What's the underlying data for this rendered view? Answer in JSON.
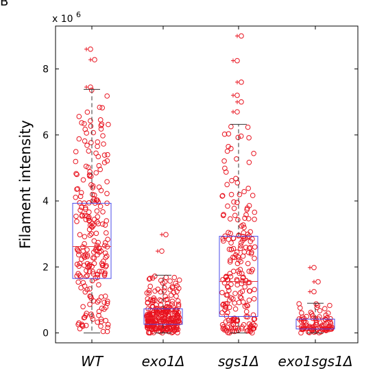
{
  "panel_letter": "B",
  "chart_data": {
    "type": "box",
    "ylabel": "Filament intensity",
    "xlabel": "",
    "y_exponent_label": "x 10",
    "y_exponent_power": "6",
    "ylim": [
      -0.3,
      9.3
    ],
    "yticks": [
      0,
      2,
      4,
      6,
      8
    ],
    "ytick_labels": [
      "0",
      "2",
      "4",
      "6",
      "8"
    ],
    "grid": false,
    "legend": "none",
    "colors": {
      "box": "#4a4ae8",
      "median": "#e8343c",
      "whisker": "#333333",
      "points": "#e8121e"
    },
    "categories": [
      "WT",
      "exo1Δ",
      "sgs1Δ",
      "exo1sgs1Δ"
    ],
    "boxes": [
      {
        "category": "WT",
        "q1": 1.65,
        "median": 2.62,
        "q3": 3.93,
        "whisker_low": 0.0,
        "whisker_high": 7.38,
        "outliers": [
          7.45,
          8.28,
          8.6
        ]
      },
      {
        "category": "exo1Δ",
        "q1": 0.26,
        "median": 0.45,
        "q3": 0.73,
        "whisker_low": 0.0,
        "whisker_high": 1.75,
        "outliers": [
          2.48,
          2.98
        ]
      },
      {
        "category": "sgs1Δ",
        "q1": 0.5,
        "median": 1.56,
        "q3": 2.93,
        "whisker_low": 0.0,
        "whisker_high": 6.32,
        "outliers": [
          6.7,
          7.0,
          7.2,
          7.6,
          8.25,
          9.0
        ]
      },
      {
        "category": "exo1sgs1Δ",
        "q1": 0.12,
        "median": 0.2,
        "q3": 0.42,
        "whisker_low": 0.0,
        "whisker_high": 0.9,
        "outliers": [
          1.25,
          1.55,
          1.98
        ]
      }
    ],
    "points_per_group": [
      230,
      260,
      220,
      90
    ]
  }
}
